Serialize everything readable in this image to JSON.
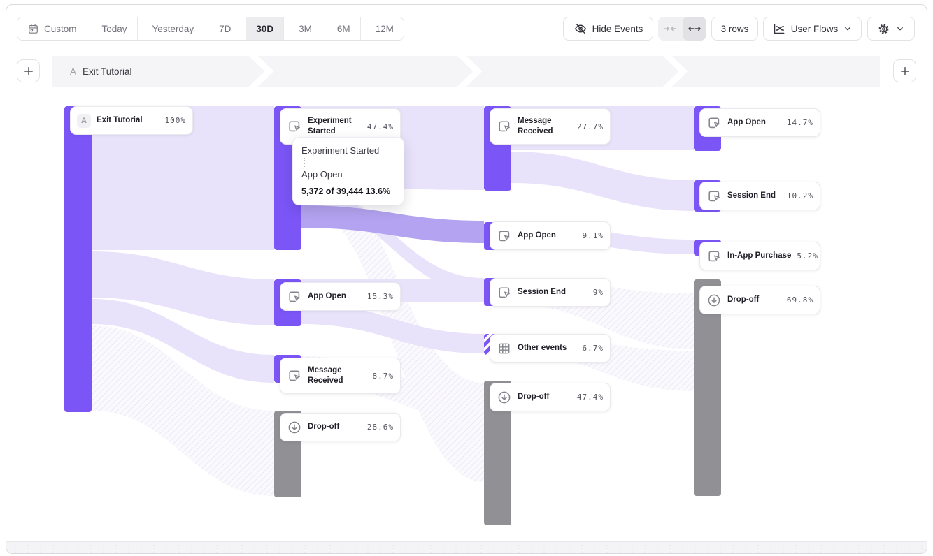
{
  "toolbar": {
    "date_ranges": [
      {
        "label": "Custom",
        "icon": "calendar-icon",
        "selected": false
      },
      {
        "label": "Today",
        "selected": false
      },
      {
        "label": "Yesterday",
        "selected": false
      },
      {
        "label": "7D",
        "selected": false
      },
      {
        "label": "30D",
        "selected": true
      },
      {
        "label": "3M",
        "selected": false
      },
      {
        "label": "6M",
        "selected": false
      },
      {
        "label": "12M",
        "selected": false
      }
    ],
    "hide_events": "Hide Events",
    "rows": "3 rows",
    "view": "User Flows"
  },
  "steps": {
    "add_label": "+",
    "items": [
      {
        "letter": "A",
        "title": "Exit Tutorial"
      }
    ]
  },
  "tooltip": {
    "from": "Experiment Started",
    "to": "App Open",
    "stat": "5,372 of 39,444 13.6%"
  },
  "colors": {
    "accent": "#7B55F6",
    "dropoff": "#909095",
    "ribbon": "#E8E2FA",
    "ribbon_highlight": "#B3A3F0"
  },
  "flow": {
    "columns": [
      {
        "nodes": [
          {
            "label": "Exit Tutorial",
            "value": "100%",
            "type": "start",
            "badge": "A"
          }
        ]
      },
      {
        "nodes": [
          {
            "label": "Experiment Started",
            "value": "47.4%",
            "type": "event"
          },
          {
            "label": "App Open",
            "value": "15.3%",
            "type": "event"
          },
          {
            "label": "Message Received",
            "value": "8.7%",
            "type": "event"
          },
          {
            "label": "Drop-off",
            "value": "28.6%",
            "type": "dropoff"
          }
        ]
      },
      {
        "nodes": [
          {
            "label": "Message Received",
            "value": "27.7%",
            "type": "event"
          },
          {
            "label": "App Open",
            "value": "9.1%",
            "type": "event"
          },
          {
            "label": "Session End",
            "value": "9%",
            "type": "event"
          },
          {
            "label": "Other events",
            "value": "6.7%",
            "type": "other"
          },
          {
            "label": "Drop-off",
            "value": "47.4%",
            "type": "dropoff"
          }
        ]
      },
      {
        "nodes": [
          {
            "label": "App Open",
            "value": "14.7%",
            "type": "event"
          },
          {
            "label": "Session End",
            "value": "10.2%",
            "type": "event"
          },
          {
            "label": "In-App Purchase",
            "value": "5.2%",
            "type": "event"
          },
          {
            "label": "Drop-off",
            "value": "69.8%",
            "type": "dropoff"
          }
        ]
      }
    ]
  }
}
